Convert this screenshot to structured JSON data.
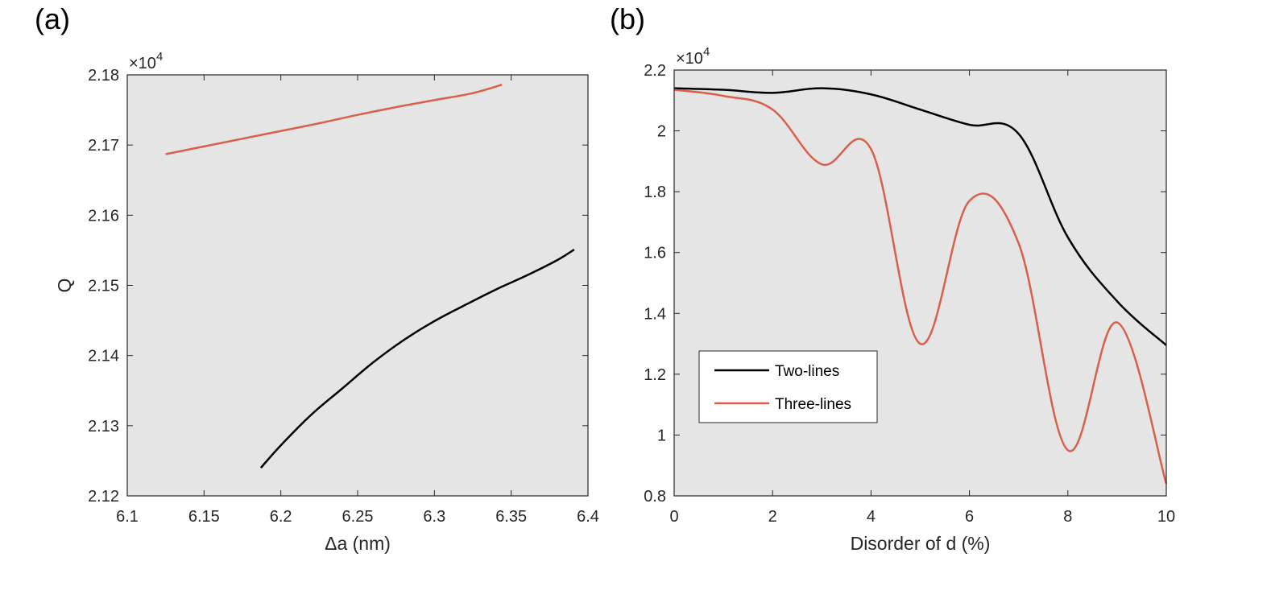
{
  "panels": {
    "a": {
      "label": "(a)"
    },
    "b": {
      "label": "(b)"
    }
  },
  "colors": {
    "plot_bg": "#e5e5e5",
    "axis": "#262626",
    "two_lines": "#000000",
    "three_lines": "#d95f4b"
  },
  "chart_data": [
    {
      "id": "a",
      "type": "line",
      "title": "",
      "xlabel": "Δa (nm)",
      "ylabel": "Q",
      "xlim": [
        6.1,
        6.4
      ],
      "ylim": [
        2.12,
        2.18
      ],
      "y_multiplier": "×10",
      "y_exponent": "4",
      "xticks": [
        6.1,
        6.15,
        6.2,
        6.25,
        6.3,
        6.35,
        6.4
      ],
      "xtick_labels": [
        "6.1",
        "6.15",
        "6.2",
        "6.25",
        "6.3",
        "6.35",
        "6.4"
      ],
      "yticks": [
        2.12,
        2.13,
        2.14,
        2.15,
        2.16,
        2.17,
        2.18
      ],
      "ytick_labels": [
        "2.12",
        "2.13",
        "2.14",
        "2.15",
        "2.16",
        "2.17",
        "2.18"
      ],
      "series": [
        {
          "name": "Three-lines",
          "color_key": "three_lines",
          "x": [
            6.125,
            6.15,
            6.175,
            6.2,
            6.225,
            6.25,
            6.275,
            6.3,
            6.325,
            6.344
          ],
          "y": [
            2.1687,
            2.1698,
            2.1709,
            2.172,
            2.1731,
            2.1743,
            2.1754,
            2.1764,
            2.1774,
            2.1786
          ]
        },
        {
          "name": "Two-lines",
          "color_key": "two_lines",
          "x": [
            6.187,
            6.2,
            6.22,
            6.24,
            6.26,
            6.28,
            6.3,
            6.32,
            6.34,
            6.36,
            6.38,
            6.391
          ],
          "y": [
            2.124,
            2.1272,
            2.1316,
            2.1353,
            2.139,
            2.1422,
            2.1449,
            2.1472,
            2.1494,
            2.1514,
            2.1536,
            2.1551
          ]
        }
      ]
    },
    {
      "id": "b",
      "type": "line",
      "title": "",
      "xlabel": "Disorder of d (%)",
      "ylabel": "",
      "xlim": [
        0,
        10
      ],
      "ylim": [
        0.8,
        2.2
      ],
      "y_multiplier": "×10",
      "y_exponent": "4",
      "xticks": [
        0,
        2,
        4,
        6,
        8,
        10
      ],
      "xtick_labels": [
        "0",
        "2",
        "4",
        "6",
        "8",
        "10"
      ],
      "yticks": [
        0.8,
        1,
        1.2,
        1.4,
        1.6,
        1.8,
        2,
        2.2
      ],
      "ytick_labels": [
        "0.8",
        "1",
        "1.2",
        "1.4",
        "1.6",
        "1.8",
        "2",
        "2.2"
      ],
      "legend_position": "lower-left",
      "series": [
        {
          "name": "Two-lines",
          "color_key": "two_lines",
          "x": [
            0,
            1,
            2,
            3,
            4,
            5,
            6,
            7,
            8,
            9,
            10
          ],
          "y": [
            2.14,
            2.135,
            2.125,
            2.14,
            2.12,
            2.07,
            2.02,
            1.99,
            1.65,
            1.44,
            1.295
          ]
        },
        {
          "name": "Three-lines",
          "color_key": "three_lines",
          "x": [
            0,
            1,
            2,
            3,
            4,
            5,
            6,
            7,
            8,
            9,
            10
          ],
          "y": [
            2.135,
            2.115,
            2.07,
            1.89,
            1.94,
            1.3,
            1.77,
            1.63,
            0.95,
            1.37,
            0.84
          ]
        }
      ]
    }
  ]
}
